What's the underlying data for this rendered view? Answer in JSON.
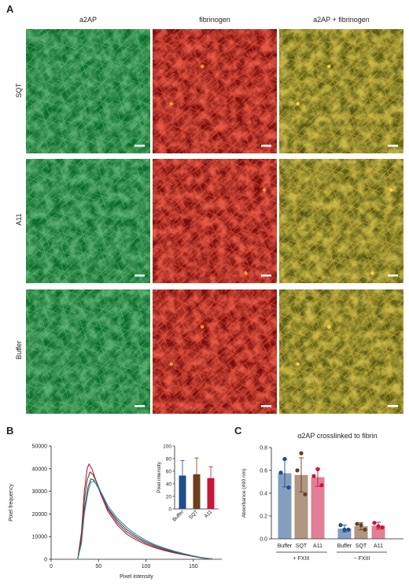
{
  "panel_a": {
    "letter": "A",
    "columns": [
      "a2AP",
      "fibrinogen",
      "a2AP + fibrinogen"
    ],
    "rows": [
      "SQT",
      "A11",
      "Buffer"
    ]
  },
  "panel_b": {
    "letter": "B",
    "colors": {
      "buffer": "#1f4e8c",
      "sqt": "#6b3f1d",
      "a11": "#c8163c",
      "extra": "#4c8a84"
    }
  },
  "panel_c": {
    "letter": "C",
    "title": "α2AP crosslinked to fibrin",
    "fxiii_plus": "+ FXIII",
    "fxiii_minus": "− FXIII"
  },
  "chart_data": [
    {
      "type": "line",
      "name": "pixel-histogram",
      "xlabel": "Pixel intensity",
      "ylabel": "Pixel frequency",
      "xlim": [
        0,
        180
      ],
      "ylim": [
        0,
        50000
      ],
      "xticks": [
        0,
        50,
        100,
        150
      ],
      "yticks": [
        0,
        10000,
        20000,
        30000,
        40000,
        50000
      ],
      "series": [
        {
          "color": "#c8163c",
          "x": [
            28,
            32,
            35,
            38,
            40,
            43,
            47,
            52,
            60,
            70,
            80,
            90,
            100,
            110,
            120,
            130,
            140,
            150,
            160,
            170
          ],
          "values": [
            0,
            12000,
            30000,
            40000,
            42000,
            40000,
            35000,
            29000,
            21000,
            15000,
            11000,
            8500,
            6500,
            5000,
            3800,
            2800,
            2000,
            1200,
            500,
            200
          ]
        },
        {
          "color": "#6b3f1d",
          "x": [
            28,
            32,
            35,
            38,
            41,
            44,
            48,
            53,
            60,
            70,
            80,
            90,
            100,
            110,
            120,
            130,
            140,
            150,
            160,
            170
          ],
          "values": [
            0,
            10000,
            26000,
            35000,
            38500,
            37500,
            34000,
            29000,
            22000,
            16000,
            12000,
            9300,
            7100,
            5400,
            4100,
            3000,
            2100,
            1300,
            600,
            200
          ]
        },
        {
          "color": "#1f4e8c",
          "x": [
            28,
            32,
            35,
            39,
            42,
            45,
            49,
            54,
            60,
            70,
            80,
            90,
            100,
            110,
            120,
            130,
            140,
            150,
            160,
            170
          ],
          "values": [
            0,
            8000,
            22000,
            32000,
            35500,
            35000,
            32000,
            28000,
            22500,
            17000,
            13000,
            10000,
            7700,
            5900,
            4500,
            3300,
            2300,
            1400,
            600,
            200
          ]
        },
        {
          "color": "#4c8a84",
          "x": [
            28,
            32,
            35,
            39,
            42,
            45,
            49,
            54,
            60,
            70,
            80,
            90,
            100,
            110,
            120,
            130,
            140,
            150,
            160,
            170
          ],
          "values": [
            0,
            7000,
            20000,
            30000,
            34000,
            34500,
            32500,
            28500,
            23500,
            18000,
            14000,
            10800,
            8300,
            6400,
            4900,
            3600,
            2500,
            1500,
            700,
            200
          ]
        }
      ]
    },
    {
      "type": "bar",
      "name": "pixel-intensity-inset",
      "categories": [
        "Buffer",
        "SQT",
        "A11"
      ],
      "values": [
        53,
        55,
        49
      ],
      "errors": [
        24,
        26,
        18
      ],
      "ylabel": "Pixel intensity",
      "ylim": [
        0,
        100
      ],
      "yticks": [
        0,
        20,
        40,
        60,
        80,
        100
      ]
    },
    {
      "type": "bar",
      "name": "alpha2ap-crosslink",
      "title": "α2AP crosslinked to fibrin",
      "ylabel": "Absorbance (490 nm)",
      "ylim": [
        0,
        0.8
      ],
      "yticks": [
        "0.0",
        "0.2",
        "0.4",
        "0.6",
        "0.8"
      ],
      "categories": [
        "Buffer",
        "SQT",
        "A11",
        "Buffer",
        "SQT",
        "A11"
      ],
      "values": [
        0.575,
        0.56,
        0.54,
        0.09,
        0.11,
        0.115
      ],
      "errors": [
        0.12,
        0.15,
        0.08,
        0.03,
        0.03,
        0.03
      ],
      "points": [
        [
          0.7,
          0.58,
          0.45
        ],
        [
          0.75,
          0.6,
          0.39
        ],
        [
          0.61,
          0.55,
          0.47
        ],
        [
          0.12,
          0.08,
          0.08
        ],
        [
          0.13,
          0.12,
          0.08
        ],
        [
          0.14,
          0.11,
          0.1
        ]
      ],
      "colors": [
        "#1f4e8c",
        "#6b3f1d",
        "#c8163c",
        "#1f4e8c",
        "#6b3f1d",
        "#c8163c"
      ]
    }
  ]
}
